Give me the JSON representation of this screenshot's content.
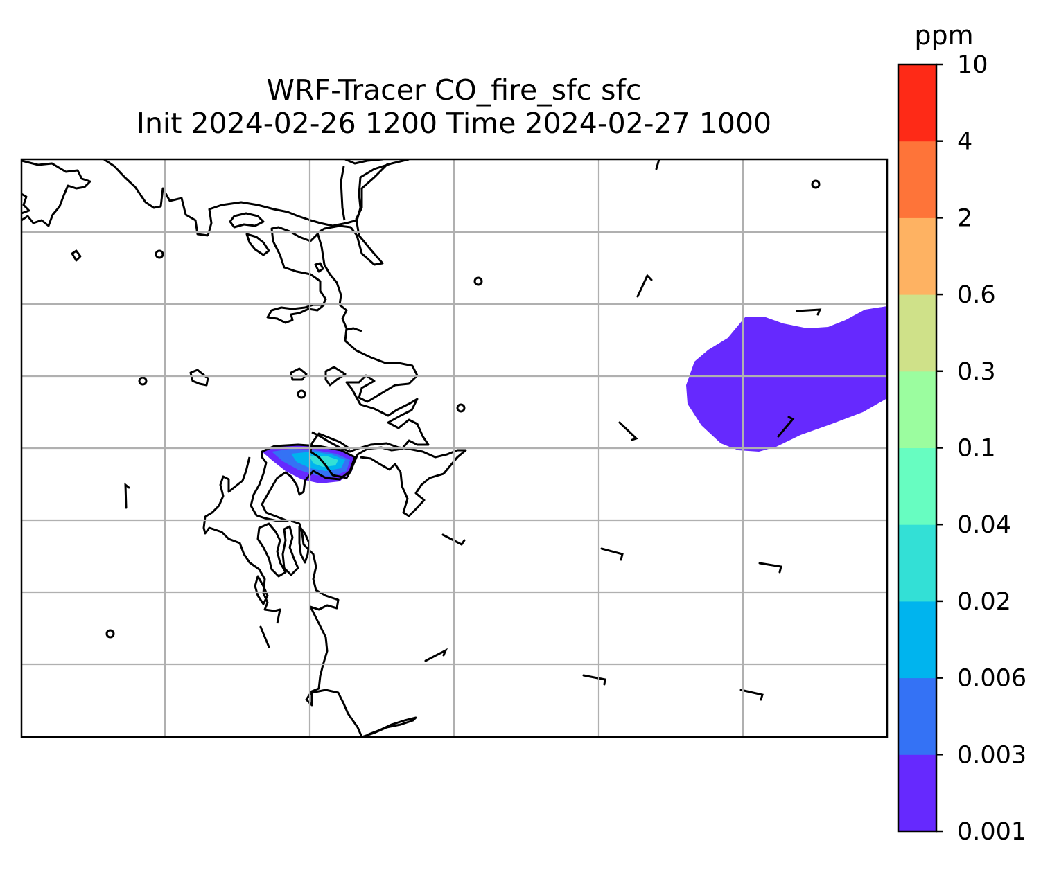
{
  "title": {
    "line1": "WRF-Tracer CO_fire_sfc sfc",
    "line2": "Init 2024-02-26 1200 Time 2024-02-27 1000"
  },
  "colorbar": {
    "unit": "ppm",
    "levels": [
      "0.001",
      "0.003",
      "0.006",
      "0.02",
      "0.04",
      "0.1",
      "0.3",
      "0.6",
      "2",
      "4",
      "10"
    ],
    "colors": [
      "#6629fe",
      "#3472f5",
      "#00b4ee",
      "#33e0d6",
      "#67fdc1",
      "#9bfd9f",
      "#cfe189",
      "#feb262",
      "#fe7439",
      "#fe2a17"
    ]
  },
  "map": {
    "gridlines": true,
    "features": [
      "coastlines",
      "wind-barbs",
      "co-tracer-contours"
    ]
  }
}
